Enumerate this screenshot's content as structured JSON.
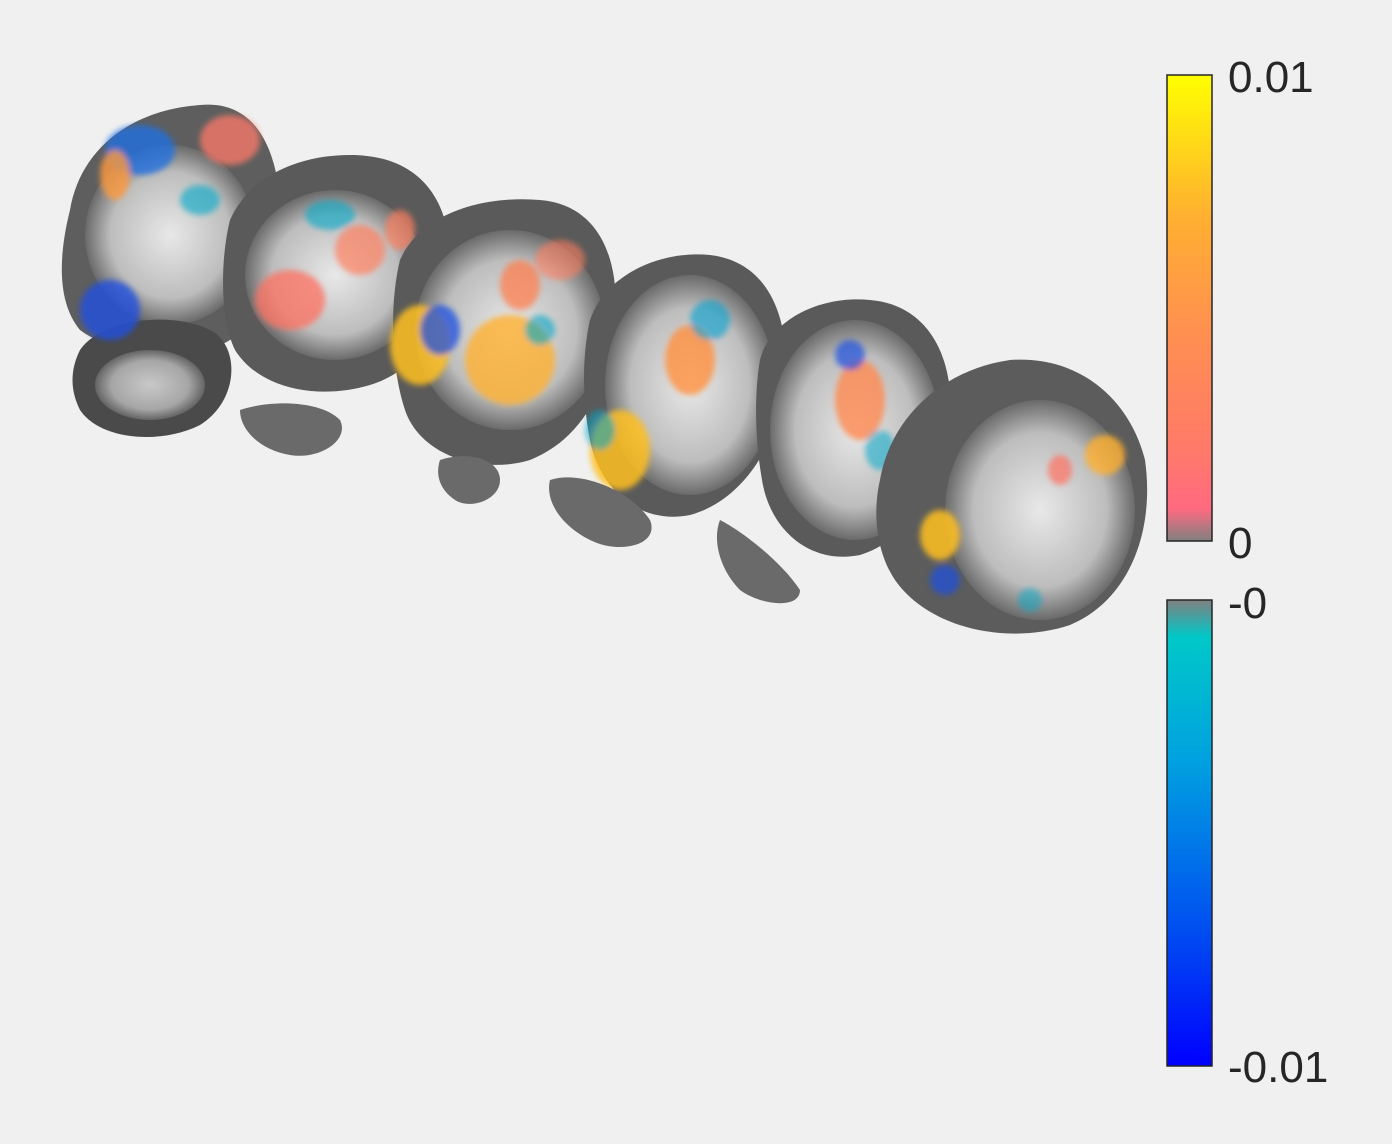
{
  "figure": {
    "description_type": "brain-slice-montage",
    "background": "#f0f0f0"
  },
  "colorbar": {
    "positive": {
      "max_label": "0.01",
      "min_label": "0",
      "colors": [
        "#ffff00",
        "#ffb030",
        "#ff9050",
        "#ff7a68",
        "#ff6a80",
        "#808080"
      ]
    },
    "negative": {
      "max_label": "-0",
      "min_label": "-0.01",
      "colors": [
        "#808080",
        "#00c8c8",
        "#00a0e0",
        "#0060f0",
        "#0000ff"
      ]
    }
  }
}
